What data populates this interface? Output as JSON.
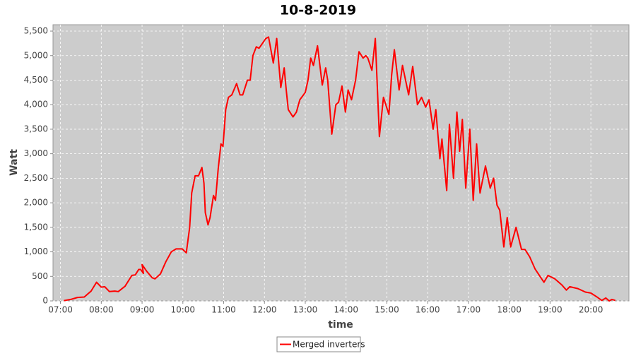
{
  "chart_data": {
    "type": "line",
    "title": "10-8-2019",
    "x_label": "time",
    "y_label": "Watt",
    "x": [
      "07:05",
      "07:15",
      "07:25",
      "07:35",
      "07:45",
      "07:53",
      "08:00",
      "08:05",
      "08:12",
      "08:20",
      "08:25",
      "08:35",
      "08:45",
      "08:50",
      "08:55",
      "08:58",
      "09:02",
      "09:00",
      "09:07",
      "09:15",
      "09:19",
      "09:27",
      "09:35",
      "09:43",
      "09:50",
      "09:59",
      "10:05",
      "10:10",
      "10:13",
      "10:18",
      "10:23",
      "10:28",
      "10:31",
      "10:33",
      "10:37",
      "10:40",
      "10:45",
      "10:48",
      "10:52",
      "10:56",
      "10:59",
      "11:03",
      "11:07",
      "11:12",
      "11:19",
      "11:24",
      "11:28",
      "11:35",
      "11:39",
      "11:43",
      "11:48",
      "11:52",
      "11:57",
      "12:02",
      "12:06",
      "12:13",
      "12:18",
      "12:24",
      "12:29",
      "12:32",
      "12:35",
      "12:42",
      "12:47",
      "12:52",
      "13:00",
      "13:04",
      "13:08",
      "13:12",
      "13:18",
      "13:25",
      "13:30",
      "13:33",
      "13:39",
      "13:42",
      "13:45",
      "13:49",
      "13:54",
      "13:59",
      "14:03",
      "14:08",
      "14:14",
      "14:19",
      "14:25",
      "14:29",
      "14:32",
      "14:38",
      "14:43",
      "14:49",
      "14:55",
      "15:03",
      "15:07",
      "15:11",
      "15:18",
      "15:23",
      "15:32",
      "15:38",
      "15:45",
      "15:51",
      "15:57",
      "16:02",
      "16:08",
      "16:12",
      "16:18",
      "16:21",
      "16:28",
      "16:32",
      "16:38",
      "16:43",
      "16:47",
      "16:51",
      "16:56",
      "17:02",
      "17:07",
      "17:12",
      "17:17",
      "17:25",
      "17:32",
      "17:37",
      "17:42",
      "17:46",
      "17:52",
      "17:57",
      "18:02",
      "18:10",
      "18:18",
      "18:23",
      "18:30",
      "18:38",
      "18:51",
      "18:57",
      "19:07",
      "19:17",
      "19:24",
      "19:29",
      "19:41",
      "19:52",
      "20:00",
      "20:09",
      "20:16",
      "20:22",
      "20:27",
      "20:31",
      "20:36"
    ],
    "series": [
      {
        "name": "Merged inverters",
        "color": "#ff0000",
        "values": [
          5,
          30,
          70,
          80,
          200,
          380,
          280,
          290,
          190,
          200,
          190,
          300,
          520,
          530,
          640,
          640,
          560,
          740,
          600,
          470,
          450,
          550,
          800,
          1000,
          1060,
          1060,
          980,
          1500,
          2200,
          2550,
          2550,
          2720,
          2400,
          1800,
          1550,
          1700,
          2150,
          2050,
          2700,
          3200,
          3150,
          3900,
          4150,
          4200,
          4430,
          4200,
          4200,
          4500,
          4500,
          5000,
          5180,
          5150,
          5250,
          5350,
          5380,
          4850,
          5350,
          4350,
          4750,
          4300,
          3900,
          3750,
          3850,
          4100,
          4250,
          4500,
          4950,
          4800,
          5200,
          4400,
          4750,
          4500,
          3400,
          3700,
          4000,
          4050,
          4380,
          3850,
          4300,
          4100,
          4500,
          5080,
          4950,
          5000,
          4950,
          4700,
          5350,
          3350,
          4150,
          3800,
          4600,
          5120,
          4300,
          4800,
          4200,
          4780,
          4000,
          4150,
          3950,
          4100,
          3500,
          3900,
          2900,
          3300,
          2250,
          3600,
          2500,
          3850,
          3050,
          3700,
          2300,
          3500,
          2050,
          3200,
          2200,
          2750,
          2300,
          2500,
          1950,
          1850,
          1100,
          1700,
          1100,
          1500,
          1050,
          1050,
          900,
          650,
          380,
          520,
          450,
          330,
          220,
          290,
          250,
          180,
          160,
          80,
          10,
          60,
          0,
          30,
          10
        ]
      }
    ],
    "xlim": [
      "06:49",
      "20:56"
    ],
    "xticks": [
      "07:00",
      "08:00",
      "09:00",
      "10:00",
      "11:00",
      "12:00",
      "13:00",
      "14:00",
      "15:00",
      "16:00",
      "17:00",
      "18:00",
      "19:00",
      "20:00"
    ],
    "ylim": [
      0,
      5630
    ],
    "yticks": [
      0,
      500,
      {
        "value": 1000,
        "label": "1,000"
      },
      {
        "value": 1500,
        "label": "1,500"
      },
      {
        "value": 2000,
        "label": "2,000"
      },
      {
        "value": 2500,
        "label": "2,500"
      },
      {
        "value": 3000,
        "label": "3,000"
      },
      {
        "value": 3500,
        "label": "3,500"
      },
      {
        "value": 4000,
        "label": "4,000"
      },
      {
        "value": 4500,
        "label": "4,500"
      },
      {
        "value": 5000,
        "label": "5,000"
      },
      {
        "value": 5500,
        "label": "5,500"
      }
    ],
    "grid": true,
    "legend": "bottom"
  }
}
